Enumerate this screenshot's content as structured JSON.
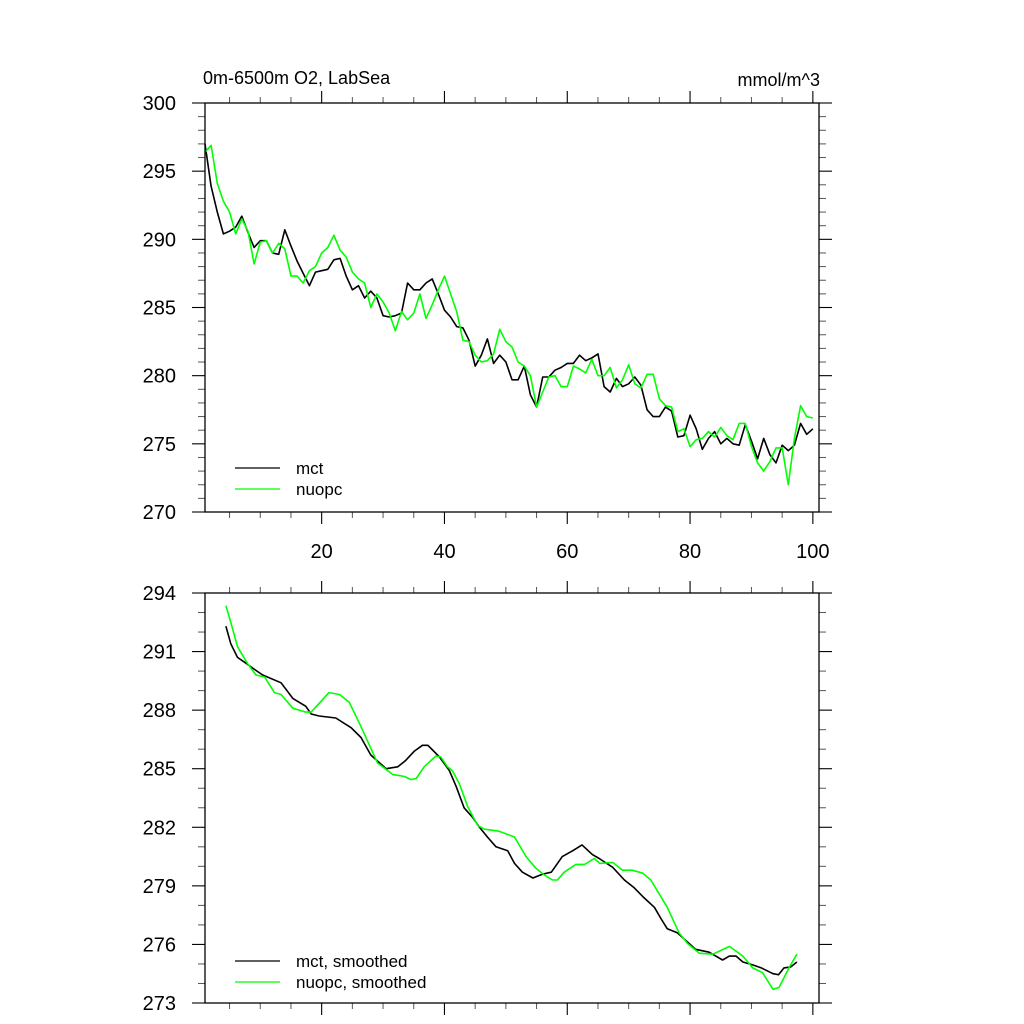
{
  "chart_data": [
    {
      "type": "line",
      "title": "0m-6500m O2, LabSea",
      "units": "mmol/m^3",
      "xlabel": "",
      "ylabel": "",
      "xlim": [
        1,
        101
      ],
      "ylim": [
        270,
        300
      ],
      "x_ticks": [
        20,
        40,
        60,
        80,
        100
      ],
      "x_tick_labels": [
        "20",
        "40",
        "60",
        "80",
        "100"
      ],
      "y_ticks": [
        270,
        275,
        280,
        285,
        290,
        295,
        300
      ],
      "y_tick_labels": [
        "270",
        "275",
        "280",
        "285",
        "290",
        "295",
        "300"
      ],
      "legend_position": "bottom-left",
      "series": [
        {
          "name": "mct",
          "color": "#000000",
          "values": [
            297.0,
            293.9,
            292.0,
            290.4,
            290.6,
            290.9,
            291.7,
            290.5,
            289.4,
            289.9,
            289.9,
            289.0,
            288.9,
            290.7,
            289.5,
            288.4,
            287.5,
            286.6,
            287.6,
            287.7,
            287.8,
            288.5,
            288.6,
            287.3,
            286.3,
            286.6,
            285.7,
            286.2,
            285.7,
            284.4,
            284.3,
            284.4,
            284.6,
            286.8,
            286.3,
            286.3,
            286.8,
            287.1,
            286.0,
            284.8,
            284.3,
            283.6,
            283.5,
            282.6,
            280.7,
            281.5,
            282.7,
            280.9,
            281.5,
            281.0,
            279.7,
            279.7,
            280.7,
            278.6,
            277.7,
            279.9,
            279.9,
            280.4,
            280.6,
            280.9,
            280.9,
            281.5,
            281.1,
            281.3,
            281.6,
            279.2,
            278.8,
            279.8,
            279.2,
            279.4,
            279.9,
            279.3,
            277.5,
            277.0,
            277.0,
            277.7,
            277.4,
            275.5,
            275.6,
            277.1,
            276.1,
            274.6,
            275.4,
            275.9,
            275.0,
            275.4,
            275.0,
            274.9,
            276.4,
            275.2,
            273.9,
            275.4,
            274.2,
            273.6,
            274.9,
            274.5,
            274.9,
            276.5,
            275.7,
            276.1
          ]
        },
        {
          "name": "nuopc",
          "color": "#00ff00",
          "values": [
            296.4,
            296.9,
            294.1,
            292.8,
            292.0,
            290.4,
            291.5,
            290.6,
            288.2,
            289.8,
            289.9,
            289.0,
            289.7,
            289.3,
            287.3,
            287.3,
            286.8,
            287.7,
            288.0,
            289.0,
            289.4,
            290.3,
            289.2,
            288.7,
            287.6,
            287.1,
            286.8,
            285.0,
            286.0,
            285.4,
            284.6,
            283.3,
            284.7,
            284.1,
            284.6,
            286.0,
            284.2,
            285.2,
            286.3,
            287.3,
            286.0,
            284.7,
            282.6,
            282.5,
            281.5,
            281.0,
            281.1,
            281.6,
            283.4,
            282.5,
            282.1,
            281.0,
            280.7,
            280.0,
            277.7,
            278.8,
            279.9,
            280.0,
            279.2,
            279.2,
            280.7,
            280.5,
            280.2,
            281.2,
            280.0,
            280.0,
            280.6,
            279.1,
            279.7,
            280.8,
            279.4,
            279.1,
            280.1,
            280.1,
            278.3,
            277.8,
            277.7,
            275.9,
            276.1,
            274.8,
            275.3,
            275.4,
            275.9,
            275.5,
            276.2,
            275.6,
            275.3,
            276.5,
            276.5,
            274.8,
            273.6,
            273.0,
            273.7,
            274.7,
            274.7,
            272.0,
            275.4,
            277.8,
            277.0,
            276.9
          ]
        }
      ]
    },
    {
      "type": "line",
      "title": "",
      "xlabel": "",
      "ylabel": "",
      "xlim": [
        1,
        101
      ],
      "ylim": [
        273,
        294
      ],
      "x_ticks": [
        20,
        40,
        60,
        80,
        100
      ],
      "y_ticks": [
        273,
        276,
        279,
        282,
        285,
        288,
        291,
        294
      ],
      "y_tick_labels": [
        "273",
        "276",
        "279",
        "282",
        "285",
        "288",
        "291",
        "294"
      ],
      "legend_position": "bottom-left",
      "series": [
        {
          "name": "mct, smoothed",
          "color": "#000000",
          "x": [
            4.4,
            5.2,
            6.3,
            7.7,
            9.0,
            10.4,
            13.4,
            15.3,
            17.4,
            18.3,
            19.6,
            22.3,
            24.8,
            26.4,
            28.0,
            30.5,
            32.4,
            33.6,
            35.1,
            36.4,
            37.3,
            39.2,
            40.8,
            41.9,
            43.2,
            44.6,
            45.7,
            47.0,
            48.4,
            50.3,
            51.4,
            52.7,
            54.4,
            56.0,
            57.4,
            59.2,
            60.9,
            62.4,
            64.1,
            65.2,
            67.4,
            69.3,
            70.9,
            72.3,
            74.2,
            75.3,
            76.3,
            77.9,
            79.3,
            80.9,
            83.1,
            85.3,
            86.4,
            87.5,
            88.6,
            90.2,
            91.6,
            93.5,
            94.4,
            95.3,
            96.4,
            97.4
          ],
          "values": [
            292.3,
            291.4,
            290.7,
            290.4,
            290.1,
            289.8,
            289.4,
            288.6,
            288.2,
            287.8,
            287.7,
            287.6,
            287.1,
            286.6,
            285.7,
            285.0,
            285.1,
            285.4,
            285.9,
            286.2,
            286.2,
            285.6,
            284.9,
            284.1,
            283.0,
            282.5,
            282.0,
            281.5,
            281.0,
            280.8,
            280.15,
            279.7,
            279.4,
            279.6,
            279.7,
            280.5,
            280.8,
            281.1,
            280.6,
            280.4,
            279.95,
            279.3,
            278.9,
            278.45,
            277.9,
            277.3,
            276.8,
            276.6,
            276.2,
            275.75,
            275.6,
            275.2,
            275.4,
            275.4,
            275.1,
            274.95,
            274.8,
            274.5,
            274.45,
            274.8,
            274.85,
            275.1
          ]
        },
        {
          "name": "nuopc, smoothed",
          "color": "#00ff00",
          "x": [
            4.4,
            5.2,
            6.3,
            7.9,
            9.3,
            10.7,
            12.3,
            13.4,
            15.3,
            17.4,
            18.3,
            19.6,
            21.2,
            22.9,
            24.5,
            26.4,
            29.1,
            31.6,
            33.5,
            34.5,
            35.4,
            36.7,
            38.6,
            39.4,
            40.5,
            41.3,
            42.4,
            43.8,
            45.4,
            46.5,
            48.9,
            51.4,
            53.3,
            54.9,
            56.3,
            57.6,
            58.4,
            59.5,
            61.4,
            62.8,
            64.4,
            65.3,
            67.4,
            69.0,
            70.6,
            72.3,
            73.6,
            76.3,
            78.2,
            79.6,
            81.5,
            83.7,
            86.4,
            88.6,
            90.2,
            91.8,
            93.5,
            94.5,
            96.2,
            97.4
          ],
          "values": [
            293.35,
            292.5,
            291.25,
            290.4,
            289.8,
            289.7,
            288.9,
            288.8,
            288.1,
            287.9,
            287.9,
            288.35,
            288.9,
            288.8,
            288.4,
            287.15,
            285.3,
            284.7,
            284.6,
            284.45,
            284.5,
            285.1,
            285.65,
            285.6,
            285.1,
            284.9,
            284.25,
            283.05,
            282.1,
            281.9,
            281.8,
            281.5,
            280.5,
            279.9,
            279.55,
            279.3,
            279.3,
            279.7,
            280.1,
            280.1,
            280.4,
            280.15,
            280.2,
            279.8,
            279.8,
            279.65,
            279.3,
            277.9,
            276.6,
            276.05,
            275.55,
            275.5,
            275.9,
            275.4,
            274.8,
            274.55,
            273.7,
            273.8,
            274.85,
            275.5
          ]
        }
      ]
    }
  ]
}
